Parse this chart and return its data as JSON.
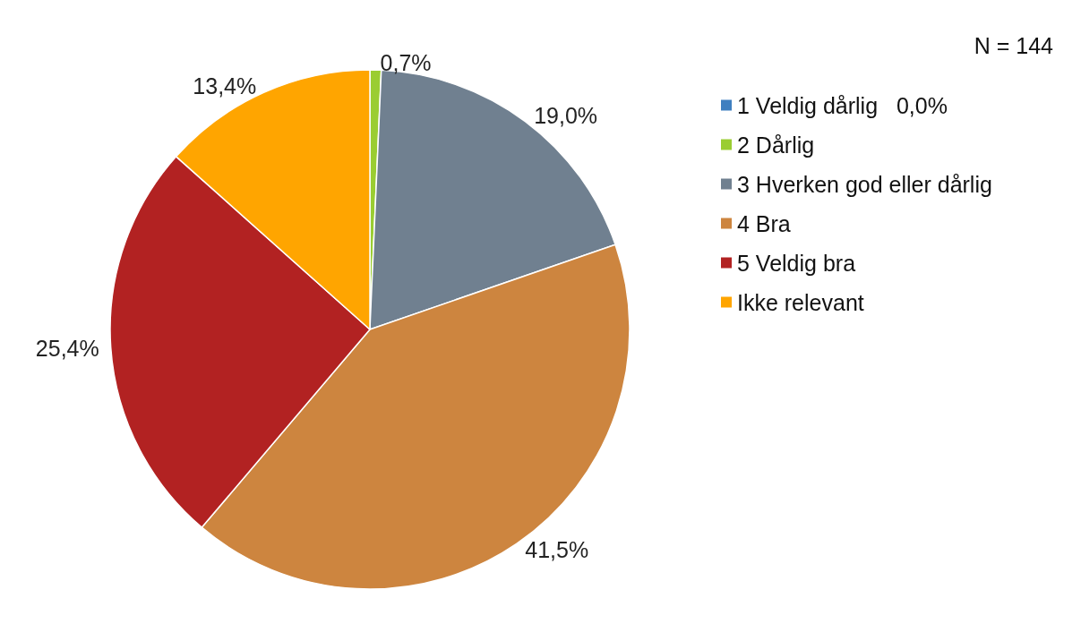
{
  "chart_data": {
    "type": "pie",
    "categories": [
      "1 Veldig dårlig",
      "2 Dårlig",
      "3 Hverken god eller dårlig",
      "4 Bra",
      "5 Veldig bra",
      "Ikke relevant"
    ],
    "values": [
      0.0,
      0.7,
      19.0,
      41.5,
      25.4,
      13.4
    ],
    "colors": [
      "#3f7fc0",
      "#9acd32",
      "#708090",
      "#cd853f",
      "#b22222",
      "#ffa500"
    ],
    "value_labels": [
      "0,0%",
      "0,7%",
      "19,0%",
      "41,5%",
      "25,4%",
      "13,4%"
    ],
    "legend": "right",
    "annotations": [
      "N = 144"
    ]
  }
}
